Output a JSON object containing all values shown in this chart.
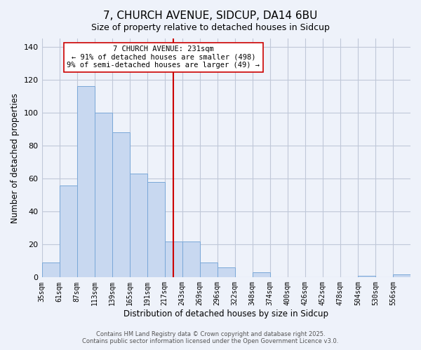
{
  "title": "7, CHURCH AVENUE, SIDCUP, DA14 6BU",
  "subtitle": "Size of property relative to detached houses in Sidcup",
  "xlabel": "Distribution of detached houses by size in Sidcup",
  "ylabel": "Number of detached properties",
  "bar_color": "#c8d8f0",
  "bar_edge_color": "#7aa8d8",
  "background_color": "#eef2fa",
  "grid_color": "#c0c8d8",
  "categories": [
    "35sqm",
    "61sqm",
    "87sqm",
    "113sqm",
    "139sqm",
    "165sqm",
    "191sqm",
    "217sqm",
    "243sqm",
    "269sqm",
    "296sqm",
    "322sqm",
    "348sqm",
    "374sqm",
    "400sqm",
    "426sqm",
    "452sqm",
    "478sqm",
    "504sqm",
    "530sqm",
    "556sqm"
  ],
  "values": [
    9,
    56,
    116,
    100,
    88,
    63,
    58,
    22,
    22,
    9,
    6,
    0,
    3,
    0,
    0,
    0,
    0,
    0,
    1,
    0,
    2
  ],
  "vline_pos": 7.5,
  "vline_color": "#cc0000",
  "ylim": [
    0,
    145
  ],
  "yticks": [
    0,
    20,
    40,
    60,
    80,
    100,
    120,
    140
  ],
  "annotation_title": "7 CHURCH AVENUE: 231sqm",
  "annotation_line1": "← 91% of detached houses are smaller (498)",
  "annotation_line2": "9% of semi-detached houses are larger (49) →",
  "footer_line1": "Contains HM Land Registry data © Crown copyright and database right 2025.",
  "footer_line2": "Contains public sector information licensed under the Open Government Licence v3.0."
}
